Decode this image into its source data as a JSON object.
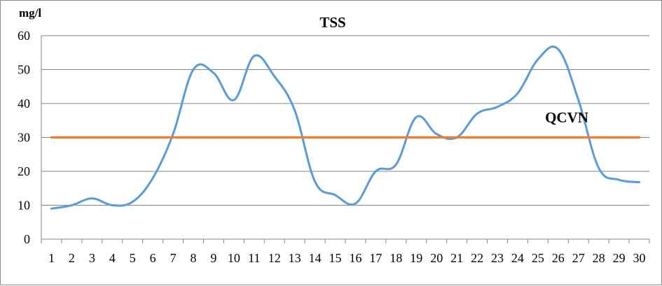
{
  "chart_data": {
    "type": "line",
    "title": "TSS",
    "ylabel": "mg/l",
    "xlabel": "",
    "annotation": "QCVN",
    "ylim": [
      0,
      60
    ],
    "yticks": [
      "0",
      "10",
      "20",
      "30",
      "40",
      "50",
      "60"
    ],
    "grid": "horizontal",
    "categories": [
      "1",
      "2",
      "3",
      "4",
      "5",
      "6",
      "7",
      "8",
      "9",
      "10",
      "11",
      "12",
      "13",
      "14",
      "15",
      "16",
      "17",
      "18",
      "19",
      "20",
      "21",
      "22",
      "23",
      "24",
      "25",
      "26",
      "27",
      "28",
      "29",
      "30"
    ],
    "series": [
      {
        "values": [
          9,
          10,
          12,
          10,
          11,
          18,
          31,
          50,
          49,
          41,
          54,
          48,
          38,
          17,
          13,
          10.5,
          20,
          22,
          36,
          31,
          30,
          37,
          39,
          43,
          53,
          56,
          41,
          21,
          17.5,
          16.8
        ],
        "color": "#5B9BD5",
        "smooth": true
      },
      {
        "values": [
          30,
          30,
          30,
          30,
          30,
          30,
          30,
          30,
          30,
          30,
          30,
          30,
          30,
          30,
          30,
          30,
          30,
          30,
          30,
          30,
          30,
          30,
          30,
          30,
          30,
          30,
          30,
          30,
          30,
          30
        ],
        "color": "#ED7D31",
        "smooth": false
      }
    ]
  }
}
